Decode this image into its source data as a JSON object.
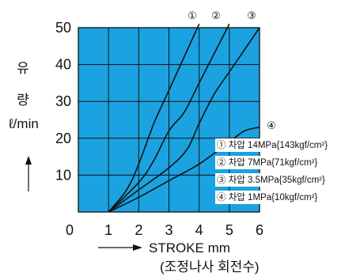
{
  "chart_data": {
    "type": "line",
    "background_color": "#1aa3e0",
    "grid": true,
    "xlim": [
      0,
      6
    ],
    "ylim": [
      0,
      50
    ],
    "x_ticks": [
      "0",
      "1",
      "2",
      "3",
      "4",
      "5",
      "6"
    ],
    "y_ticks": [
      "10",
      "20",
      "30",
      "40",
      "50"
    ],
    "xlabel": "STROKE mm",
    "xlabel_sub": "(조정나사 회전수)",
    "ylabel_line1": "유",
    "ylabel_line2": "량",
    "ylabel_unit": "ℓ/min",
    "series": [
      {
        "name": "①",
        "label": "① 차압 14MPa{143kgf/cm²}",
        "points": [
          [
            1,
            0
          ],
          [
            1.6,
            6
          ],
          [
            2,
            13
          ],
          [
            2.5,
            24
          ],
          [
            3,
            33
          ],
          [
            3.5,
            42
          ],
          [
            4,
            51
          ]
        ]
      },
      {
        "name": "②",
        "label": "② 차압 7MPa{71kgf/cm²}",
        "points": [
          [
            1,
            0
          ],
          [
            2,
            8
          ],
          [
            2.5,
            14
          ],
          [
            3,
            22
          ],
          [
            3.5,
            27
          ],
          [
            4,
            35
          ],
          [
            4.5,
            43
          ],
          [
            5,
            51
          ]
        ]
      },
      {
        "name": "③",
        "label": "③ 차압 3.5MPa{35kgf/cm²}",
        "points": [
          [
            1,
            0
          ],
          [
            2,
            6
          ],
          [
            3,
            12
          ],
          [
            3.6,
            17
          ],
          [
            4,
            24
          ],
          [
            4.5,
            32
          ],
          [
            5,
            38
          ],
          [
            5.5,
            44
          ],
          [
            6,
            50
          ]
        ]
      },
      {
        "name": "④",
        "label": "④ 차압 1MPa{10kgf/cm²}",
        "points": [
          [
            1,
            0
          ],
          [
            2,
            4
          ],
          [
            3,
            8.5
          ],
          [
            4,
            13
          ],
          [
            5,
            19
          ],
          [
            5.5,
            22
          ],
          [
            6,
            23
          ]
        ]
      }
    ]
  }
}
